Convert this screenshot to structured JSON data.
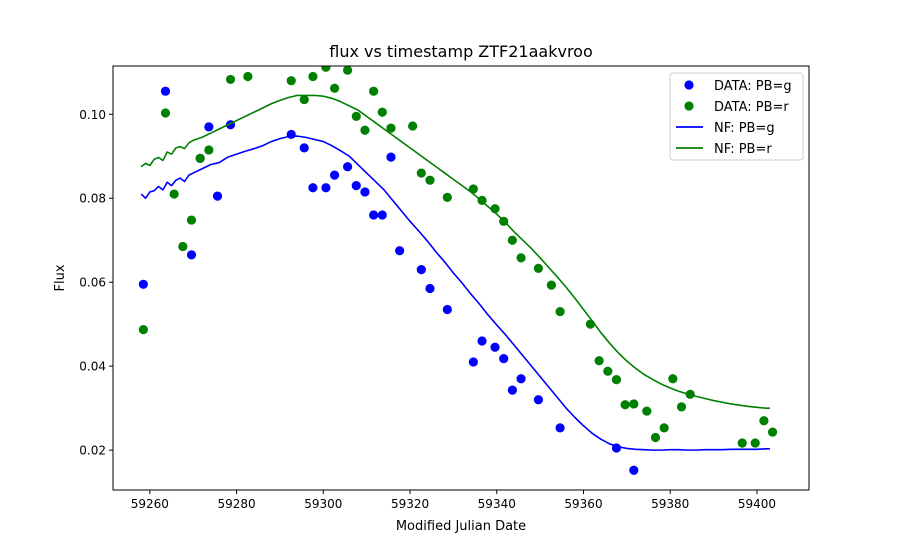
{
  "chart_data": {
    "type": "scatter",
    "title": "flux vs timestamp ZTF21aakvroo",
    "xlabel": "Modified Julian Date",
    "ylabel": "Flux",
    "xlim": [
      59251.5,
      59412
    ],
    "ylim": [
      0.0105,
      0.1115
    ],
    "xticks": [
      59260,
      59280,
      59300,
      59320,
      59340,
      59360,
      59380,
      59400
    ],
    "yticks": [
      0.02,
      0.04,
      0.06,
      0.08,
      0.1
    ],
    "ytick_labels": [
      "0.02",
      "0.04",
      "0.06",
      "0.08",
      "0.10"
    ],
    "grid": false,
    "legend_position": "top-right",
    "colors": {
      "g": "#0000ff",
      "r": "#008000"
    },
    "series": [
      {
        "name": "DATA: PB=g",
        "kind": "scatter",
        "color": "#0000ff",
        "x": [
          59258.5,
          59263.6,
          59269.6,
          59271.6,
          59273.6,
          59275.6,
          59278.6,
          59292.6,
          59295.6,
          59297.6,
          59300.6,
          59302.6,
          59305.6,
          59307.6,
          59309.6,
          59311.6,
          59313.6,
          59315.6,
          59317.6,
          59322.6,
          59324.6,
          59328.6,
          59334.6,
          59336.6,
          59339.6,
          59341.6,
          59343.6,
          59345.6,
          59349.6,
          59354.6,
          59367.6,
          59371.6
        ],
        "y": [
          0.0595,
          0.1055,
          0.0665,
          0.0895,
          0.097,
          0.0805,
          0.0975,
          0.0952,
          0.092,
          0.0825,
          0.0825,
          0.0855,
          0.0875,
          0.083,
          0.0815,
          0.076,
          0.076,
          0.0898,
          0.0675,
          0.063,
          0.0585,
          0.0535,
          0.041,
          0.046,
          0.0445,
          0.0418,
          0.0343,
          0.037,
          0.032,
          0.0253,
          0.0205,
          0.0152
        ]
      },
      {
        "name": "DATA: PB=r",
        "kind": "scatter",
        "color": "#008000",
        "x": [
          59258.5,
          59263.6,
          59265.6,
          59267.6,
          59269.6,
          59271.6,
          59273.6,
          59278.6,
          59282.6,
          59292.6,
          59295.6,
          59297.6,
          59300.6,
          59302.6,
          59305.6,
          59307.6,
          59309.6,
          59311.6,
          59313.6,
          59315.6,
          59320.6,
          59322.6,
          59324.6,
          59328.6,
          59334.6,
          59336.6,
          59339.6,
          59341.6,
          59343.6,
          59345.6,
          59349.6,
          59352.6,
          59354.6,
          59361.6,
          59363.6,
          59365.6,
          59367.6,
          59369.6,
          59371.6,
          59374.6,
          59376.6,
          59378.6,
          59380.6,
          59382.6,
          59384.6,
          59396.6,
          59399.6,
          59401.6,
          59403.6
        ],
        "y": [
          0.0487,
          0.1003,
          0.081,
          0.0685,
          0.0748,
          0.0895,
          0.0915,
          0.1083,
          0.109,
          0.108,
          0.1035,
          0.109,
          0.1112,
          0.1062,
          0.1105,
          0.0995,
          0.0962,
          0.1055,
          0.1005,
          0.0967,
          0.0972,
          0.086,
          0.0843,
          0.0802,
          0.0822,
          0.0795,
          0.0775,
          0.0745,
          0.07,
          0.0658,
          0.0633,
          0.0593,
          0.053,
          0.05,
          0.0413,
          0.0388,
          0.0368,
          0.0308,
          0.031,
          0.0293,
          0.023,
          0.0253,
          0.037,
          0.0303,
          0.0333,
          0.0217,
          0.0217,
          0.027,
          0.0243
        ]
      },
      {
        "name": "NF: PB=g",
        "kind": "line",
        "color": "#0000ff",
        "x": [
          59258,
          59259,
          59260,
          59261,
          59262,
          59263,
          59264,
          59265,
          59266,
          59267,
          59268,
          59269,
          59270,
          59272,
          59274,
          59276,
          59278,
          59280,
          59282,
          59284,
          59286,
          59288,
          59290,
          59292,
          59294,
          59296,
          59298,
          59300,
          59302,
          59304,
          59306,
          59308,
          59310,
          59312,
          59314,
          59316,
          59318,
          59320,
          59322,
          59324,
          59326,
          59328,
          59330,
          59332,
          59334,
          59336,
          59338,
          59340,
          59342,
          59344,
          59346,
          59348,
          59350,
          59352,
          59354,
          59356,
          59358,
          59360,
          59362,
          59364,
          59366,
          59368,
          59370,
          59372,
          59374,
          59376,
          59378,
          59380,
          59382,
          59384,
          59386,
          59388,
          59390,
          59392,
          59394,
          59396,
          59398,
          59400,
          59402,
          59403
        ],
        "y": [
          0.081,
          0.08,
          0.0815,
          0.0818,
          0.0828,
          0.082,
          0.0838,
          0.083,
          0.0843,
          0.0848,
          0.084,
          0.0855,
          0.086,
          0.087,
          0.088,
          0.0885,
          0.0898,
          0.0905,
          0.0912,
          0.0918,
          0.0925,
          0.0935,
          0.0942,
          0.0947,
          0.0948,
          0.0945,
          0.094,
          0.0935,
          0.0925,
          0.0913,
          0.09,
          0.088,
          0.086,
          0.084,
          0.082,
          0.0795,
          0.077,
          0.0745,
          0.0722,
          0.0698,
          0.0672,
          0.0648,
          0.0622,
          0.0598,
          0.0572,
          0.0548,
          0.0522,
          0.0498,
          0.0475,
          0.045,
          0.0425,
          0.04,
          0.0375,
          0.035,
          0.0325,
          0.03,
          0.0278,
          0.0258,
          0.024,
          0.0226,
          0.0215,
          0.0208,
          0.0204,
          0.0202,
          0.0201,
          0.02,
          0.02,
          0.0201,
          0.0201,
          0.02,
          0.02,
          0.0201,
          0.0201,
          0.0201,
          0.0202,
          0.0202,
          0.0202,
          0.0202,
          0.0203,
          0.0203
        ]
      },
      {
        "name": "NF: PB=r",
        "kind": "line",
        "color": "#008000",
        "x": [
          59258,
          59259,
          59260,
          59261,
          59262,
          59263,
          59264,
          59265,
          59266,
          59267,
          59268,
          59269,
          59270,
          59272,
          59274,
          59276,
          59278,
          59280,
          59282,
          59284,
          59286,
          59288,
          59290,
          59292,
          59294,
          59296,
          59298,
          59300,
          59302,
          59304,
          59306,
          59308,
          59310,
          59312,
          59314,
          59316,
          59318,
          59320,
          59322,
          59324,
          59326,
          59328,
          59330,
          59332,
          59334,
          59336,
          59338,
          59340,
          59342,
          59344,
          59346,
          59348,
          59350,
          59352,
          59354,
          59356,
          59358,
          59360,
          59362,
          59364,
          59366,
          59368,
          59370,
          59372,
          59374,
          59376,
          59378,
          59380,
          59382,
          59384,
          59386,
          59388,
          59390,
          59392,
          59394,
          59396,
          59398,
          59400,
          59402,
          59403
        ],
        "y": [
          0.0875,
          0.0883,
          0.0878,
          0.0893,
          0.0897,
          0.089,
          0.091,
          0.0905,
          0.092,
          0.0923,
          0.0918,
          0.0932,
          0.0938,
          0.0945,
          0.0955,
          0.0965,
          0.0975,
          0.0985,
          0.0995,
          0.1005,
          0.1015,
          0.1025,
          0.1033,
          0.104,
          0.1045,
          0.1045,
          0.1045,
          0.1043,
          0.1038,
          0.103,
          0.102,
          0.101,
          0.0995,
          0.098,
          0.0965,
          0.095,
          0.0935,
          0.092,
          0.0905,
          0.089,
          0.0875,
          0.086,
          0.0845,
          0.083,
          0.0815,
          0.0798,
          0.078,
          0.0762,
          0.0742,
          0.072,
          0.07,
          0.068,
          0.0658,
          0.0635,
          0.0612,
          0.0588,
          0.0562,
          0.0535,
          0.0508,
          0.048,
          0.0455,
          0.0432,
          0.0412,
          0.0395,
          0.038,
          0.0368,
          0.0357,
          0.0348,
          0.034,
          0.0334,
          0.0328,
          0.0323,
          0.0318,
          0.0314,
          0.031,
          0.0307,
          0.0304,
          0.0302,
          0.03,
          0.03
        ]
      }
    ]
  }
}
